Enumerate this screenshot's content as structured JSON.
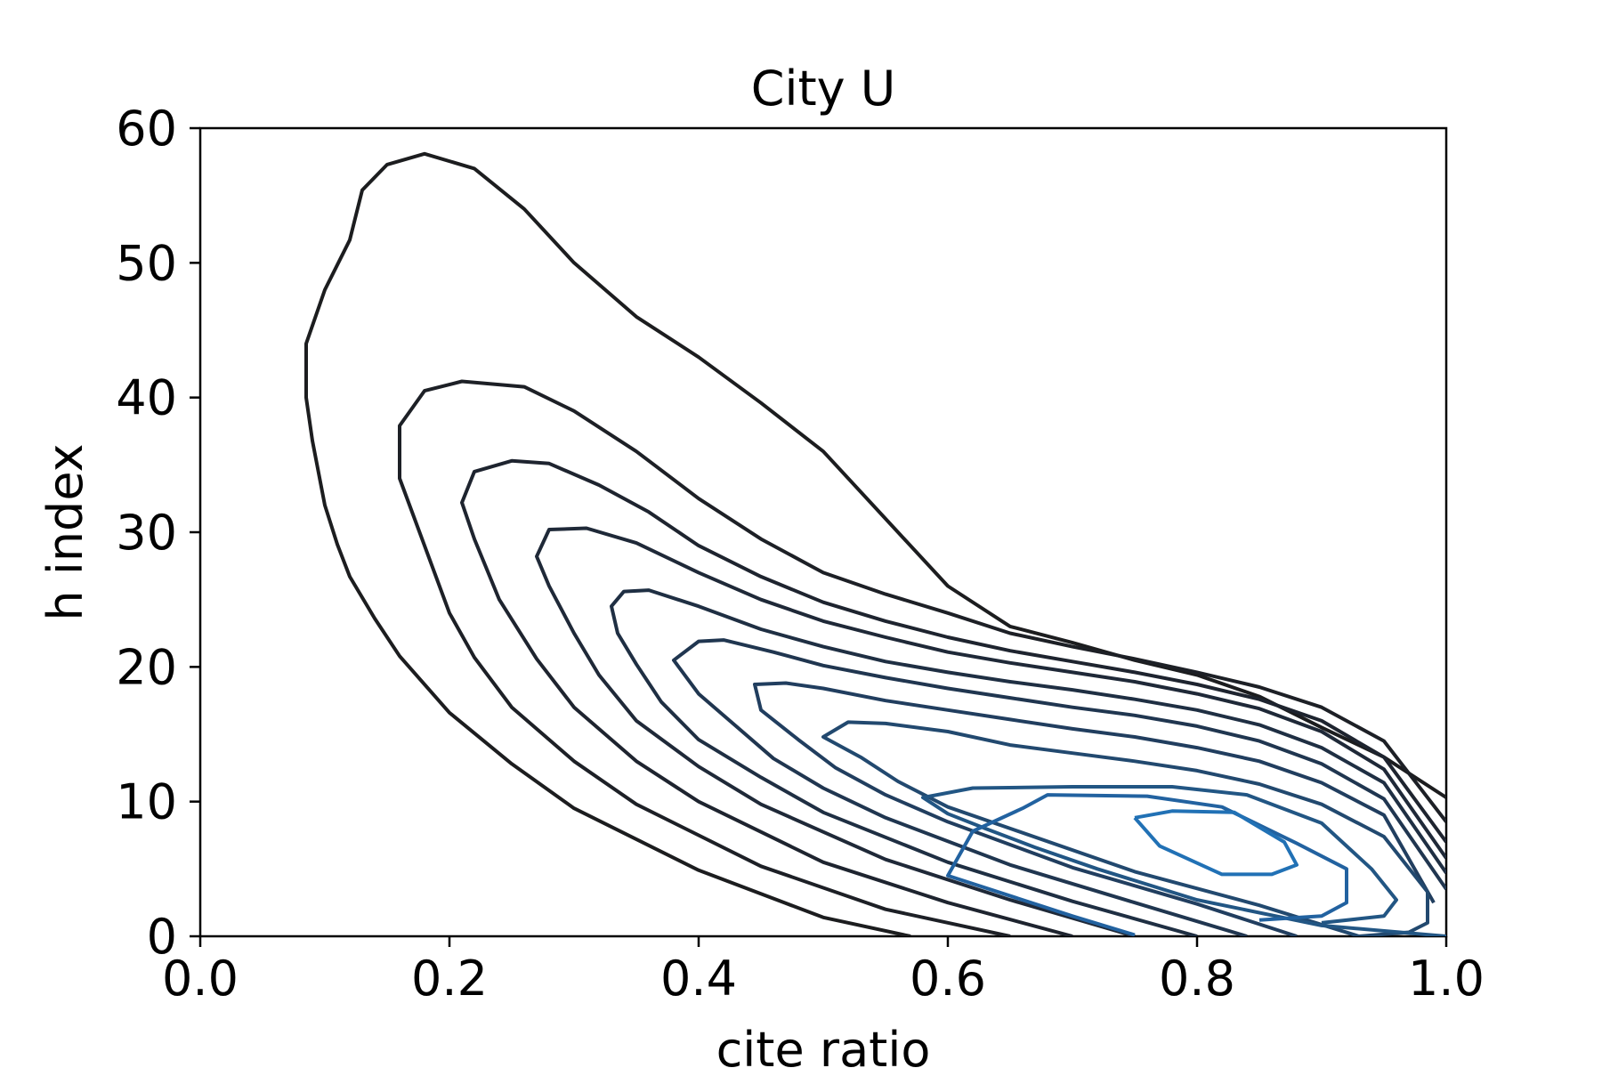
{
  "chart_data": {
    "type": "contour",
    "title": "City U",
    "xlabel": "cite ratio",
    "ylabel": "h index",
    "xlim": [
      0.0,
      1.0
    ],
    "ylim": [
      0,
      60
    ],
    "xticks": [
      "0.0",
      "0.2",
      "0.4",
      "0.6",
      "0.8",
      "1.0"
    ],
    "yticks": [
      "0",
      "10",
      "20",
      "30",
      "40",
      "50",
      "60"
    ],
    "grid": false,
    "colormap": "dark-to-blue",
    "contours": [
      {
        "level": 1,
        "color": "#1c1d1f",
        "points": [
          [
            0.57,
            0
          ],
          [
            0.5,
            1.4
          ],
          [
            0.4,
            4.9
          ],
          [
            0.3,
            9.5
          ],
          [
            0.25,
            12.8
          ],
          [
            0.2,
            16.6
          ],
          [
            0.16,
            20.8
          ],
          [
            0.14,
            23.6
          ],
          [
            0.12,
            26.7
          ],
          [
            0.11,
            29.1
          ],
          [
            0.1,
            32
          ],
          [
            0.09,
            36.8
          ],
          [
            0.085,
            40
          ],
          [
            0.085,
            44
          ],
          [
            0.1,
            48
          ],
          [
            0.12,
            51.7
          ],
          [
            0.13,
            55.4
          ],
          [
            0.15,
            57.3
          ],
          [
            0.18,
            58.1
          ],
          [
            0.22,
            57
          ],
          [
            0.26,
            54
          ],
          [
            0.3,
            50
          ],
          [
            0.35,
            46
          ],
          [
            0.4,
            43
          ],
          [
            0.45,
            39.6
          ],
          [
            0.5,
            36
          ],
          [
            0.55,
            31
          ],
          [
            0.6,
            26
          ],
          [
            0.65,
            23
          ],
          [
            0.7,
            21.8
          ],
          [
            0.75,
            20.5
          ],
          [
            0.8,
            19.4
          ],
          [
            0.85,
            17.8
          ],
          [
            0.9,
            15.5
          ],
          [
            0.95,
            13.3
          ],
          [
            1.0,
            10.3
          ]
        ]
      },
      {
        "level": 2,
        "color": "#1d2026",
        "points": [
          [
            0.65,
            0
          ],
          [
            0.55,
            2
          ],
          [
            0.45,
            5.2
          ],
          [
            0.35,
            9.8
          ],
          [
            0.3,
            13
          ],
          [
            0.25,
            17
          ],
          [
            0.22,
            20.7
          ],
          [
            0.2,
            24
          ],
          [
            0.18,
            29
          ],
          [
            0.16,
            34
          ],
          [
            0.16,
            37.9
          ],
          [
            0.18,
            40.5
          ],
          [
            0.21,
            41.2
          ],
          [
            0.26,
            40.8
          ],
          [
            0.3,
            39
          ],
          [
            0.35,
            36
          ],
          [
            0.4,
            32.5
          ],
          [
            0.45,
            29.5
          ],
          [
            0.5,
            27
          ],
          [
            0.55,
            25.4
          ],
          [
            0.6,
            24
          ],
          [
            0.65,
            22.5
          ],
          [
            0.7,
            21.5
          ],
          [
            0.75,
            20.6
          ],
          [
            0.8,
            19.6
          ],
          [
            0.85,
            18.5
          ],
          [
            0.9,
            17
          ],
          [
            0.95,
            14.5
          ],
          [
            1.0,
            8.5
          ]
        ]
      },
      {
        "level": 3,
        "color": "#1e242f",
        "points": [
          [
            0.7,
            0
          ],
          [
            0.6,
            2.5
          ],
          [
            0.5,
            5.5
          ],
          [
            0.4,
            10
          ],
          [
            0.35,
            13
          ],
          [
            0.3,
            17
          ],
          [
            0.27,
            20.6
          ],
          [
            0.24,
            25
          ],
          [
            0.22,
            29.5
          ],
          [
            0.21,
            32.2
          ],
          [
            0.22,
            34.5
          ],
          [
            0.25,
            35.3
          ],
          [
            0.28,
            35.1
          ],
          [
            0.32,
            33.5
          ],
          [
            0.36,
            31.5
          ],
          [
            0.4,
            29
          ],
          [
            0.45,
            26.7
          ],
          [
            0.5,
            24.8
          ],
          [
            0.55,
            23.4
          ],
          [
            0.6,
            22.2
          ],
          [
            0.65,
            21.2
          ],
          [
            0.7,
            20.4
          ],
          [
            0.75,
            19.6
          ],
          [
            0.8,
            18.7
          ],
          [
            0.85,
            17.6
          ],
          [
            0.9,
            16
          ],
          [
            0.95,
            13.3
          ],
          [
            1.0,
            7
          ]
        ]
      },
      {
        "level": 4,
        "color": "#1f2938",
        "points": [
          [
            0.75,
            0
          ],
          [
            0.65,
            2.7
          ],
          [
            0.55,
            5.7
          ],
          [
            0.45,
            9.8
          ],
          [
            0.4,
            12.6
          ],
          [
            0.35,
            16
          ],
          [
            0.32,
            19.4
          ],
          [
            0.3,
            22.5
          ],
          [
            0.28,
            26
          ],
          [
            0.27,
            28.2
          ],
          [
            0.28,
            30.2
          ],
          [
            0.31,
            30.3
          ],
          [
            0.35,
            29.2
          ],
          [
            0.4,
            27
          ],
          [
            0.45,
            25
          ],
          [
            0.5,
            23.4
          ],
          [
            0.55,
            22.2
          ],
          [
            0.6,
            21.1
          ],
          [
            0.65,
            20.3
          ],
          [
            0.7,
            19.6
          ],
          [
            0.75,
            18.9
          ],
          [
            0.8,
            18
          ],
          [
            0.85,
            16.9
          ],
          [
            0.9,
            15.2
          ],
          [
            0.95,
            12.4
          ],
          [
            1.0,
            5.8
          ]
        ]
      },
      {
        "level": 5,
        "color": "#1f2f43",
        "points": [
          [
            0.8,
            0
          ],
          [
            0.7,
            2.6
          ],
          [
            0.6,
            5.5
          ],
          [
            0.5,
            9.2
          ],
          [
            0.45,
            11.8
          ],
          [
            0.4,
            14.6
          ],
          [
            0.37,
            17.4
          ],
          [
            0.35,
            20.2
          ],
          [
            0.335,
            22.5
          ],
          [
            0.33,
            24.5
          ],
          [
            0.34,
            25.6
          ],
          [
            0.36,
            25.7
          ],
          [
            0.4,
            24.5
          ],
          [
            0.45,
            22.8
          ],
          [
            0.5,
            21.5
          ],
          [
            0.55,
            20.4
          ],
          [
            0.6,
            19.6
          ],
          [
            0.65,
            18.9
          ],
          [
            0.7,
            18.3
          ],
          [
            0.75,
            17.6
          ],
          [
            0.8,
            16.8
          ],
          [
            0.85,
            15.7
          ],
          [
            0.9,
            14
          ],
          [
            0.95,
            11.4
          ],
          [
            1.0,
            4.7
          ]
        ]
      },
      {
        "level": 6,
        "color": "#203650",
        "points": [
          [
            0.84,
            0
          ],
          [
            0.75,
            2.5
          ],
          [
            0.65,
            5.3
          ],
          [
            0.55,
            8.8
          ],
          [
            0.5,
            11
          ],
          [
            0.46,
            13.2
          ],
          [
            0.43,
            15.6
          ],
          [
            0.4,
            18
          ],
          [
            0.38,
            20.5
          ],
          [
            0.4,
            21.9
          ],
          [
            0.42,
            22
          ],
          [
            0.46,
            21.1
          ],
          [
            0.5,
            20.1
          ],
          [
            0.55,
            19.2
          ],
          [
            0.6,
            18.4
          ],
          [
            0.65,
            17.7
          ],
          [
            0.7,
            17
          ],
          [
            0.75,
            16.4
          ],
          [
            0.8,
            15.6
          ],
          [
            0.85,
            14.5
          ],
          [
            0.9,
            12.8
          ],
          [
            0.95,
            10.2
          ],
          [
            1.0,
            3.5
          ]
        ]
      },
      {
        "level": 7,
        "color": "#213e5f",
        "points": [
          [
            0.88,
            0
          ],
          [
            0.8,
            2.4
          ],
          [
            0.7,
            5.1
          ],
          [
            0.6,
            8.5
          ],
          [
            0.55,
            10.5
          ],
          [
            0.51,
            12.5
          ],
          [
            0.48,
            14.6
          ],
          [
            0.45,
            16.8
          ],
          [
            0.445,
            18.7
          ],
          [
            0.47,
            18.8
          ],
          [
            0.5,
            18.4
          ],
          [
            0.55,
            17.5
          ],
          [
            0.6,
            16.8
          ],
          [
            0.65,
            16.1
          ],
          [
            0.7,
            15.4
          ],
          [
            0.75,
            14.8
          ],
          [
            0.8,
            14
          ],
          [
            0.85,
            13
          ],
          [
            0.9,
            11.4
          ],
          [
            0.95,
            9
          ],
          [
            0.99,
            2.5
          ]
        ]
      },
      {
        "level": 8,
        "color": "#22496f",
        "points": [
          [
            0.93,
            0
          ],
          [
            0.85,
            2.3
          ],
          [
            0.75,
            4.8
          ],
          [
            0.65,
            8
          ],
          [
            0.6,
            9.6
          ],
          [
            0.56,
            11.5
          ],
          [
            0.53,
            13.3
          ],
          [
            0.5,
            14.8
          ],
          [
            0.52,
            15.9
          ],
          [
            0.55,
            15.8
          ],
          [
            0.6,
            15.2
          ],
          [
            0.65,
            14.2
          ],
          [
            0.7,
            13.6
          ],
          [
            0.75,
            13
          ],
          [
            0.8,
            12.3
          ],
          [
            0.85,
            11.3
          ],
          [
            0.9,
            9.8
          ],
          [
            0.95,
            7.4
          ],
          [
            0.985,
            3.3
          ],
          [
            0.985,
            1
          ],
          [
            0.97,
            0.3
          ],
          [
            0.93,
            0
          ]
        ]
      },
      {
        "level": 9,
        "color": "#225684",
        "points": [
          [
            1.0,
            0
          ],
          [
            0.9,
            0.8
          ],
          [
            0.8,
            2.7
          ],
          [
            0.72,
            5
          ],
          [
            0.67,
            6.6
          ],
          [
            0.63,
            8
          ],
          [
            0.6,
            9.1
          ],
          [
            0.58,
            10.3
          ],
          [
            0.62,
            11
          ],
          [
            0.7,
            11.1
          ],
          [
            0.78,
            11.1
          ],
          [
            0.84,
            10.5
          ],
          [
            0.9,
            8.4
          ],
          [
            0.94,
            5
          ],
          [
            0.96,
            2.7
          ],
          [
            0.95,
            1.5
          ],
          [
            0.9,
            1
          ]
        ]
      },
      {
        "level": 10,
        "color": "#2262a0",
        "points": [
          [
            0.75,
            0.1
          ],
          [
            0.7,
            1.5
          ],
          [
            0.6,
            4.5
          ],
          [
            0.62,
            7.8
          ],
          [
            0.66,
            9.5
          ],
          [
            0.68,
            10.5
          ],
          [
            0.76,
            10.4
          ],
          [
            0.82,
            9.6
          ],
          [
            0.88,
            6.9
          ],
          [
            0.92,
            5
          ],
          [
            0.92,
            2.5
          ],
          [
            0.9,
            1.5
          ],
          [
            0.85,
            1.2
          ]
        ]
      },
      {
        "level": 11,
        "color": "#2171b5",
        "points": [
          [
            0.75,
            8.8
          ],
          [
            0.78,
            9.3
          ],
          [
            0.83,
            9.2
          ],
          [
            0.87,
            7
          ],
          [
            0.88,
            5.3
          ],
          [
            0.86,
            4.6
          ],
          [
            0.82,
            4.6
          ],
          [
            0.77,
            6.7
          ],
          [
            0.75,
            8.8
          ]
        ]
      }
    ]
  }
}
